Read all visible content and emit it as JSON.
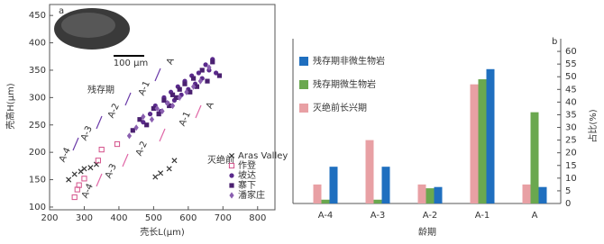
{
  "chart_data": [
    {
      "type": "scatter",
      "label": "a",
      "inset_label": "100 μm",
      "xlabel": "壳长L(μm)",
      "ylabel": "壳高H(μm)",
      "xlim": [
        200,
        850
      ],
      "ylim": [
        95,
        470
      ],
      "xticks": [
        200,
        300,
        400,
        500,
        600,
        700,
        800
      ],
      "yticks": [
        100,
        150,
        200,
        250,
        300,
        350,
        400,
        450
      ],
      "annotations": [
        {
          "text": "残存期",
          "color": "#6a3aa8"
        },
        {
          "text": "A-4",
          "color": "#6a3aa8"
        },
        {
          "text": "A-3",
          "color": "#6a3aa8"
        },
        {
          "text": "A-2",
          "color": "#6a3aa8"
        },
        {
          "text": "A-1",
          "color": "#6a3aa8"
        },
        {
          "text": "A",
          "color": "#6a3aa8"
        },
        {
          "text": "灭绝前",
          "color": "#e066a6"
        },
        {
          "text": "A-4",
          "color": "#e066a6"
        },
        {
          "text": "A-3",
          "color": "#e066a6"
        },
        {
          "text": "A-2",
          "color": "#e066a6"
        },
        {
          "text": "A-1",
          "color": "#e066a6"
        },
        {
          "text": "A",
          "color": "#e066a6"
        }
      ],
      "series": [
        {
          "name": "Aras Valley",
          "marker": "x",
          "color": "#333333",
          "x": [
            255,
            272,
            290,
            300,
            318,
            335,
            505,
            520,
            545,
            560
          ],
          "y": [
            150,
            160,
            165,
            170,
            172,
            178,
            155,
            162,
            170,
            185
          ]
        },
        {
          "name": "作登",
          "marker": "hollow-square",
          "color": "#d4508a",
          "x": [
            272,
            280,
            285,
            300,
            340,
            350,
            395
          ],
          "y": [
            118,
            132,
            140,
            152,
            185,
            205,
            215
          ]
        },
        {
          "name": "坡达",
          "marker": "circle",
          "color": "#5a2a8c",
          "x": [
            470,
            490,
            505,
            520,
            530,
            540,
            550,
            560,
            570,
            580,
            590,
            600,
            610,
            620,
            630,
            640,
            650,
            660,
            670,
            680
          ],
          "y": [
            255,
            270,
            285,
            275,
            300,
            290,
            310,
            295,
            320,
            305,
            330,
            315,
            340,
            325,
            345,
            335,
            360,
            350,
            370,
            345
          ]
        },
        {
          "name": "寨下",
          "marker": "square",
          "color": "#4a2070",
          "x": [
            440,
            460,
            480,
            500,
            515,
            530,
            545,
            555,
            565,
            575,
            590,
            605,
            615,
            625,
            640,
            655,
            670,
            690
          ],
          "y": [
            240,
            260,
            250,
            280,
            270,
            295,
            285,
            305,
            300,
            315,
            325,
            310,
            335,
            320,
            350,
            330,
            365,
            340
          ]
        },
        {
          "name": "潘家庄",
          "marker": "diamond",
          "color": "#8a5fb0",
          "x": [
            430,
            450,
            470,
            495,
            510,
            525,
            540,
            555,
            575,
            595,
            615,
            635,
            660
          ],
          "y": [
            230,
            245,
            265,
            260,
            280,
            275,
            290,
            285,
            300,
            310,
            320,
            330,
            355
          ]
        }
      ]
    },
    {
      "type": "bar",
      "label": "b",
      "xlabel": "龄期",
      "ylabel": "占比(%)",
      "categories": [
        "A-4",
        "A-3",
        "A-2",
        "A-1",
        "A"
      ],
      "ylim": [
        0,
        65
      ],
      "yticks": [
        0,
        5,
        10,
        15,
        20,
        25,
        30,
        35,
        40,
        45,
        50,
        55,
        60
      ],
      "series": [
        {
          "name": "灭绝前长兴期",
          "color": "#e8a0a4",
          "values": [
            7.5,
            25,
            7.5,
            47,
            7.5
          ]
        },
        {
          "name": "残存期微生物岩",
          "color": "#6aa84f",
          "values": [
            1.5,
            1.5,
            6,
            49,
            36
          ]
        },
        {
          "name": "残存期非微生物岩",
          "color": "#1f6fbf",
          "values": [
            14.5,
            14.5,
            6.5,
            53,
            6.5
          ]
        }
      ],
      "legend_order": [
        2,
        1,
        0
      ]
    }
  ]
}
